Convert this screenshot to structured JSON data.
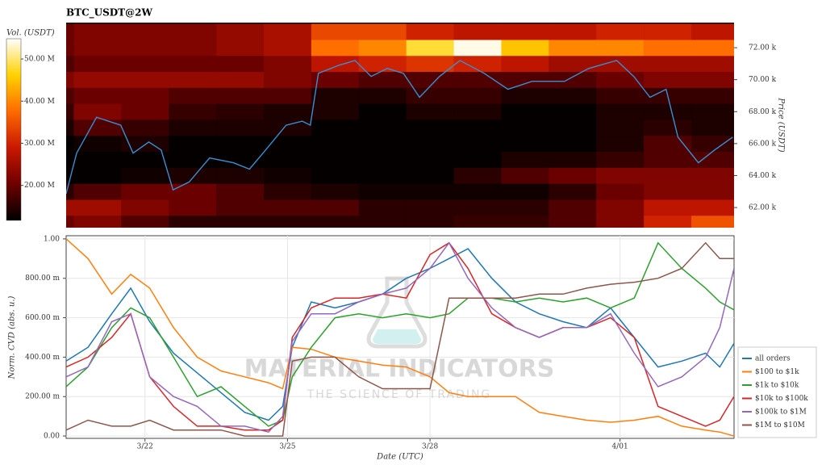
{
  "chart_data": [
    {
      "type": "heatmap",
      "title": "BTC_USDT@2W",
      "colorbar_label": "Vol. (USDT)",
      "ylabel": "Price (USDT)",
      "colorscale": [
        "#000000",
        "#6e0000",
        "#c81800",
        "#ff6a00",
        "#ffd200",
        "#ffffff"
      ],
      "zlim": [
        11700000.0,
        54800000.0
      ],
      "zticks": [
        {
          "value": 20000000.0,
          "label": "20.00 M"
        },
        {
          "value": 30000000.0,
          "label": "30.00 M"
        },
        {
          "value": 40000000.0,
          "label": "40.00 M"
        },
        {
          "value": 50000000.0,
          "label": "50.00 M"
        }
      ],
      "xlim": [
        0.34,
        14.4
      ],
      "ylim": [
        60740,
        73570
      ],
      "yticks": [
        {
          "value": 62000,
          "label": "62.00 k"
        },
        {
          "value": 64000,
          "label": "64.00 k"
        },
        {
          "value": 66000,
          "label": "66.00 k"
        },
        {
          "value": 68000,
          "label": "68.00 k"
        },
        {
          "value": 70000,
          "label": "70.00 k"
        },
        {
          "value": 72000,
          "label": "72.00 k"
        }
      ],
      "heat_x": [
        0,
        1,
        2,
        3,
        4,
        5,
        6,
        7,
        8,
        9,
        10,
        11,
        12,
        13,
        14
      ],
      "heat_y": [
        61000,
        62000,
        63000,
        64000,
        65000,
        66000,
        67000,
        68000,
        69000,
        70000,
        71000,
        72000,
        73000
      ],
      "z": [
        [
          20000000.0,
          22000000.0,
          18000000.0,
          15000000.0,
          15000000.0,
          15000000.0,
          15000000.0,
          15000000.0,
          15000000.0,
          16000000.0,
          16000000.0,
          18000000.0,
          22000000.0,
          30000000.0,
          35000000.0
        ],
        [
          25000000.0,
          25000000.0,
          22000000.0,
          20000000.0,
          18000000.0,
          18000000.0,
          18000000.0,
          15000000.0,
          15000000.0,
          15000000.0,
          15000000.0,
          18000000.0,
          22000000.0,
          28000000.0,
          28000000.0
        ],
        [
          15000000.0,
          18000000.0,
          20000000.0,
          20000000.0,
          18000000.0,
          15000000.0,
          14000000.0,
          13000000.0,
          13000000.0,
          13000000.0,
          13000000.0,
          15000000.0,
          20000000.0,
          22000000.0,
          22000000.0
        ],
        [
          12000000.0,
          12000000.0,
          13000000.0,
          14000000.0,
          14000000.0,
          13000000.0,
          12000000.0,
          12000000.0,
          12000000.0,
          15000000.0,
          18000000.0,
          20000000.0,
          22000000.0,
          22000000.0,
          22000000.0
        ],
        [
          12000000.0,
          12000000.0,
          12000000.0,
          12000000.0,
          12000000.0,
          12000000.0,
          12000000.0,
          12000000.0,
          12000000.0,
          12000000.0,
          14000000.0,
          14000000.0,
          16000000.0,
          18000000.0,
          18000000.0
        ],
        [
          12000000.0,
          13000000.0,
          14000000.0,
          12000000.0,
          12000000.0,
          12000000.0,
          12000000.0,
          12000000.0,
          12000000.0,
          12000000.0,
          12000000.0,
          12000000.0,
          14000000.0,
          18000000.0,
          16000000.0
        ],
        [
          14000000.0,
          18000000.0,
          16000000.0,
          14000000.0,
          14000000.0,
          14000000.0,
          12000000.0,
          12000000.0,
          12000000.0,
          12000000.0,
          12000000.0,
          12000000.0,
          14000000.0,
          15000000.0,
          14000000.0
        ],
        [
          16000000.0,
          22000000.0,
          20000000.0,
          16000000.0,
          15000000.0,
          14000000.0,
          14000000.0,
          12000000.0,
          14000000.0,
          14000000.0,
          12000000.0,
          12000000.0,
          14000000.0,
          14000000.0,
          14000000.0
        ],
        [
          18000000.0,
          20000000.0,
          20000000.0,
          18000000.0,
          18000000.0,
          18000000.0,
          14000000.0,
          14000000.0,
          16000000.0,
          16000000.0,
          14000000.0,
          14000000.0,
          16000000.0,
          16000000.0,
          16000000.0
        ],
        [
          22000000.0,
          24000000.0,
          24000000.0,
          24000000.0,
          24000000.0,
          22000000.0,
          20000000.0,
          18000000.0,
          18000000.0,
          18000000.0,
          18000000.0,
          18000000.0,
          20000000.0,
          22000000.0,
          22000000.0
        ],
        [
          18000000.0,
          20000000.0,
          20000000.0,
          20000000.0,
          20000000.0,
          22000000.0,
          28000000.0,
          30000000.0,
          32000000.0,
          30000000.0,
          28000000.0,
          25000000.0,
          25000000.0,
          25000000.0,
          25000000.0
        ],
        [
          20000000.0,
          22000000.0,
          22000000.0,
          22000000.0,
          24000000.0,
          26000000.0,
          38000000.0,
          40000000.0,
          48000000.0,
          54000000.0,
          45000000.0,
          40000000.0,
          40000000.0,
          38000000.0,
          38000000.0
        ],
        [
          20000000.0,
          22000000.0,
          22000000.0,
          22000000.0,
          24000000.0,
          26000000.0,
          34000000.0,
          34000000.0,
          30000000.0,
          28000000.0,
          28000000.0,
          28000000.0,
          30000000.0,
          30000000.0,
          28000000.0
        ]
      ],
      "price": {
        "color": "#3a8fd0",
        "x": [
          0.34,
          0.56,
          0.98,
          1.49,
          1.75,
          2.08,
          2.34,
          2.59,
          2.93,
          3.36,
          3.86,
          4.2,
          4.54,
          4.97,
          5.31,
          5.48,
          5.65,
          6.08,
          6.42,
          6.76,
          7.1,
          7.44,
          7.78,
          8.2,
          8.63,
          9.14,
          9.64,
          10.15,
          10.83,
          11.34,
          11.93,
          12.29,
          12.63,
          12.97,
          13.22,
          13.65,
          13.99,
          14.37
        ],
        "values": [
          62860,
          65400,
          67650,
          67150,
          65400,
          66100,
          65600,
          63100,
          63600,
          65100,
          64800,
          64400,
          65600,
          67150,
          67400,
          67150,
          70400,
          70900,
          71200,
          70200,
          70700,
          70400,
          68900,
          70200,
          71200,
          70400,
          69400,
          69900,
          69900,
          70700,
          71200,
          70200,
          68900,
          69400,
          66400,
          64800,
          65600,
          66400
        ]
      }
    },
    {
      "type": "line",
      "ylabel": "Norm. CVD (abs. u.)",
      "xlabel": "Date (UTC)",
      "xlim": [
        0.34,
        14.4
      ],
      "xticks": [
        {
          "value": 2,
          "label": "3/22"
        },
        {
          "value": 5,
          "label": "3/25"
        },
        {
          "value": 8,
          "label": "3/28"
        },
        {
          "value": 12,
          "label": "4/01"
        }
      ],
      "ylim": [
        -0.012,
        1.016
      ],
      "yticks": [
        {
          "value": 0,
          "label": "0.00"
        },
        {
          "value": 0.2,
          "label": "200.00 m"
        },
        {
          "value": 0.4,
          "label": "400.00 m"
        },
        {
          "value": 0.6,
          "label": "600.00 m"
        },
        {
          "value": 0.8,
          "label": "800.00 m"
        },
        {
          "value": 1,
          "label": "1.00"
        }
      ],
      "grid": true,
      "legend": "right",
      "watermark": {
        "title": "MATERIAL INDICATORS",
        "subtitle": "THE SCIENCE OF TRADING"
      },
      "x": [
        0.34,
        0.8,
        1.3,
        1.7,
        2.1,
        2.6,
        3.1,
        3.6,
        4.1,
        4.6,
        4.9,
        5.1,
        5.5,
        6.0,
        6.5,
        7.0,
        7.5,
        8.0,
        8.4,
        8.8,
        9.3,
        9.8,
        10.3,
        10.8,
        11.3,
        11.8,
        12.3,
        12.8,
        13.3,
        13.8,
        14.1,
        14.4
      ],
      "series": [
        {
          "name": "all orders",
          "color": "#1f77b4",
          "values": [
            0.38,
            0.45,
            0.62,
            0.75,
            0.58,
            0.42,
            0.32,
            0.22,
            0.12,
            0.08,
            0.15,
            0.45,
            0.68,
            0.65,
            0.68,
            0.72,
            0.8,
            0.85,
            0.9,
            0.95,
            0.8,
            0.68,
            0.62,
            0.58,
            0.55,
            0.65,
            0.5,
            0.35,
            0.38,
            0.42,
            0.35,
            0.47
          ]
        },
        {
          "name": "$100 to $1k",
          "color": "#ff7f0e",
          "values": [
            1.0,
            0.9,
            0.72,
            0.82,
            0.75,
            0.55,
            0.4,
            0.33,
            0.3,
            0.27,
            0.24,
            0.45,
            0.44,
            0.4,
            0.38,
            0.36,
            0.35,
            0.3,
            0.22,
            0.2,
            0.2,
            0.2,
            0.12,
            0.1,
            0.08,
            0.07,
            0.08,
            0.1,
            0.05,
            0.03,
            0.02,
            0.0
          ]
        },
        {
          "name": "$1k to $10k",
          "color": "#2ca02c",
          "values": [
            0.25,
            0.35,
            0.55,
            0.65,
            0.6,
            0.4,
            0.2,
            0.25,
            0.15,
            0.05,
            0.08,
            0.3,
            0.45,
            0.6,
            0.62,
            0.6,
            0.62,
            0.6,
            0.62,
            0.7,
            0.7,
            0.68,
            0.7,
            0.68,
            0.7,
            0.65,
            0.7,
            0.98,
            0.85,
            0.75,
            0.68,
            0.64
          ]
        },
        {
          "name": "$10k to $100k",
          "color": "#d62728",
          "values": [
            0.35,
            0.4,
            0.5,
            0.62,
            0.3,
            0.15,
            0.05,
            0.05,
            0.03,
            0.03,
            0.08,
            0.5,
            0.65,
            0.7,
            0.7,
            0.72,
            0.7,
            0.92,
            0.98,
            0.85,
            0.62,
            0.55,
            0.5,
            0.55,
            0.55,
            0.6,
            0.5,
            0.15,
            0.1,
            0.05,
            0.08,
            0.2
          ]
        },
        {
          "name": "$100k to $1M",
          "color": "#9467bd",
          "values": [
            0.3,
            0.35,
            0.58,
            0.62,
            0.3,
            0.2,
            0.15,
            0.05,
            0.05,
            0.02,
            0.1,
            0.48,
            0.62,
            0.62,
            0.68,
            0.72,
            0.75,
            0.85,
            0.98,
            0.8,
            0.65,
            0.55,
            0.5,
            0.55,
            0.55,
            0.62,
            0.42,
            0.25,
            0.3,
            0.4,
            0.55,
            0.85
          ]
        },
        {
          "name": "$1M to $10M",
          "color": "#8c564b",
          "values": [
            0.03,
            0.08,
            0.05,
            0.05,
            0.08,
            0.03,
            0.03,
            0.03,
            0.0,
            0.0,
            0.0,
            0.38,
            0.4,
            0.4,
            0.3,
            0.24,
            0.24,
            0.24,
            0.7,
            0.7,
            0.7,
            0.7,
            0.72,
            0.72,
            0.75,
            0.77,
            0.78,
            0.8,
            0.85,
            0.98,
            0.9,
            0.9
          ]
        }
      ]
    }
  ]
}
